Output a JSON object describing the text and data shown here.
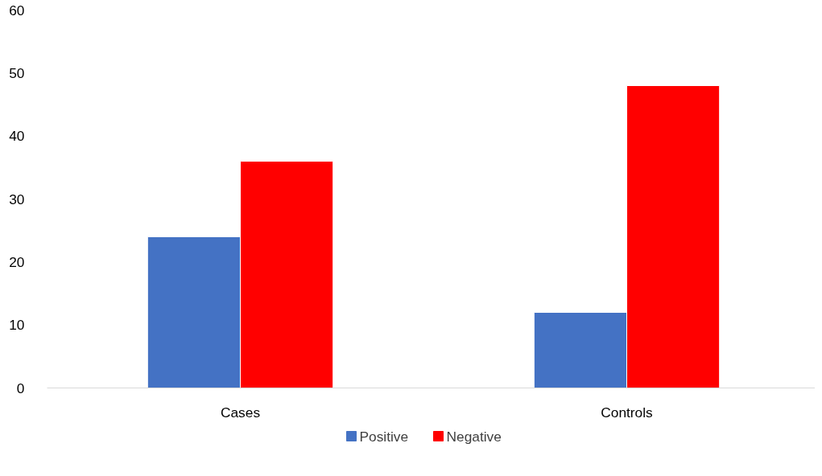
{
  "chart_data": {
    "type": "bar",
    "categories": [
      "Cases",
      "Controls"
    ],
    "series": [
      {
        "name": "Positive",
        "color": "#4472c4",
        "values": [
          24,
          12
        ]
      },
      {
        "name": "Negative",
        "color": "#ff0000",
        "values": [
          36,
          48
        ]
      }
    ],
    "ylim": [
      0,
      60
    ],
    "yticks": [
      0,
      10,
      20,
      30,
      40,
      50,
      60
    ],
    "legend": "bottom"
  }
}
